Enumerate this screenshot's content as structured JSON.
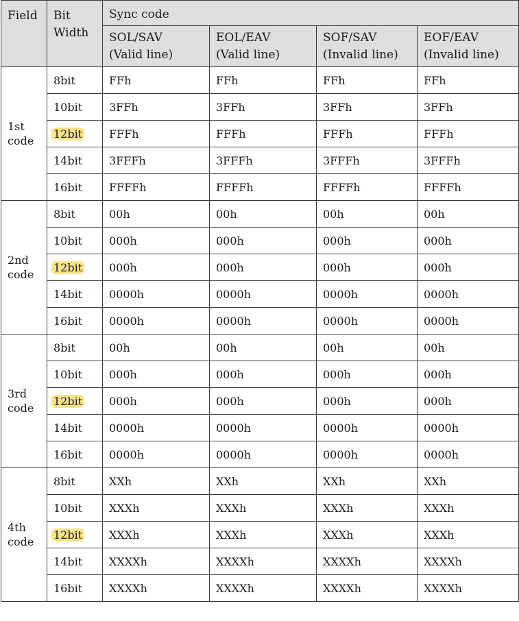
{
  "header": {
    "field": "Field",
    "bit_width": [
      "Bit",
      "Width"
    ],
    "sync_code": "Sync code",
    "columns": [
      [
        "SOL/SAV",
        "(Valid line)"
      ],
      [
        "EOL/EAV",
        "(Valid line)"
      ],
      [
        "SOF/SAV",
        "(Invalid line)"
      ],
      [
        "EOF/EAV",
        "(Invalid line)"
      ]
    ]
  },
  "highlight_color": "#fbe38c",
  "groups": [
    {
      "label": [
        "1st",
        "code"
      ],
      "rows": [
        {
          "bit": "8bit",
          "highlighted": false,
          "values": [
            "FFh",
            "FFh",
            "FFh",
            "FFh"
          ]
        },
        {
          "bit": "10bit",
          "highlighted": false,
          "values": [
            "3FFh",
            "3FFh",
            "3FFh",
            "3FFh"
          ]
        },
        {
          "bit": "12bit",
          "highlighted": true,
          "values": [
            "FFFh",
            "FFFh",
            "FFFh",
            "FFFh"
          ]
        },
        {
          "bit": "14bit",
          "highlighted": false,
          "values": [
            "3FFFh",
            "3FFFh",
            "3FFFh",
            "3FFFh"
          ]
        },
        {
          "bit": "16bit",
          "highlighted": false,
          "values": [
            "FFFFh",
            "FFFFh",
            "FFFFh",
            "FFFFh"
          ]
        }
      ]
    },
    {
      "label": [
        "2nd",
        "code"
      ],
      "rows": [
        {
          "bit": "8bit",
          "highlighted": false,
          "values": [
            "00h",
            "00h",
            "00h",
            "00h"
          ]
        },
        {
          "bit": "10bit",
          "highlighted": false,
          "values": [
            "000h",
            "000h",
            "000h",
            "000h"
          ]
        },
        {
          "bit": "12bit",
          "highlighted": true,
          "values": [
            "000h",
            "000h",
            "000h",
            "000h"
          ]
        },
        {
          "bit": "14bit",
          "highlighted": false,
          "values": [
            "0000h",
            "0000h",
            "0000h",
            "0000h"
          ]
        },
        {
          "bit": "16bit",
          "highlighted": false,
          "values": [
            "0000h",
            "0000h",
            "0000h",
            "0000h"
          ]
        }
      ]
    },
    {
      "label": [
        "3rd",
        "code"
      ],
      "rows": [
        {
          "bit": "8bit",
          "highlighted": false,
          "values": [
            "00h",
            "00h",
            "00h",
            "00h"
          ]
        },
        {
          "bit": "10bit",
          "highlighted": false,
          "values": [
            "000h",
            "000h",
            "000h",
            "000h"
          ]
        },
        {
          "bit": "12bit",
          "highlighted": true,
          "values": [
            "000h",
            "000h",
            "000h",
            "000h"
          ]
        },
        {
          "bit": "14bit",
          "highlighted": false,
          "values": [
            "0000h",
            "0000h",
            "0000h",
            "0000h"
          ]
        },
        {
          "bit": "16bit",
          "highlighted": false,
          "values": [
            "0000h",
            "0000h",
            "0000h",
            "0000h"
          ]
        }
      ]
    },
    {
      "label": [
        "4th",
        "code"
      ],
      "rows": [
        {
          "bit": "8bit",
          "highlighted": false,
          "values": [
            "XXh",
            "XXh",
            "XXh",
            "XXh"
          ]
        },
        {
          "bit": "10bit",
          "highlighted": false,
          "values": [
            "XXXh",
            "XXXh",
            "XXXh",
            "XXXh"
          ]
        },
        {
          "bit": "12bit",
          "highlighted": true,
          "values": [
            "XXXh",
            "XXXh",
            "XXXh",
            "XXXh"
          ]
        },
        {
          "bit": "14bit",
          "highlighted": false,
          "values": [
            "XXXXh",
            "XXXXh",
            "XXXXh",
            "XXXXh"
          ]
        },
        {
          "bit": "16bit",
          "highlighted": false,
          "values": [
            "XXXXh",
            "XXXXh",
            "XXXXh",
            "XXXXh"
          ]
        }
      ]
    }
  ]
}
